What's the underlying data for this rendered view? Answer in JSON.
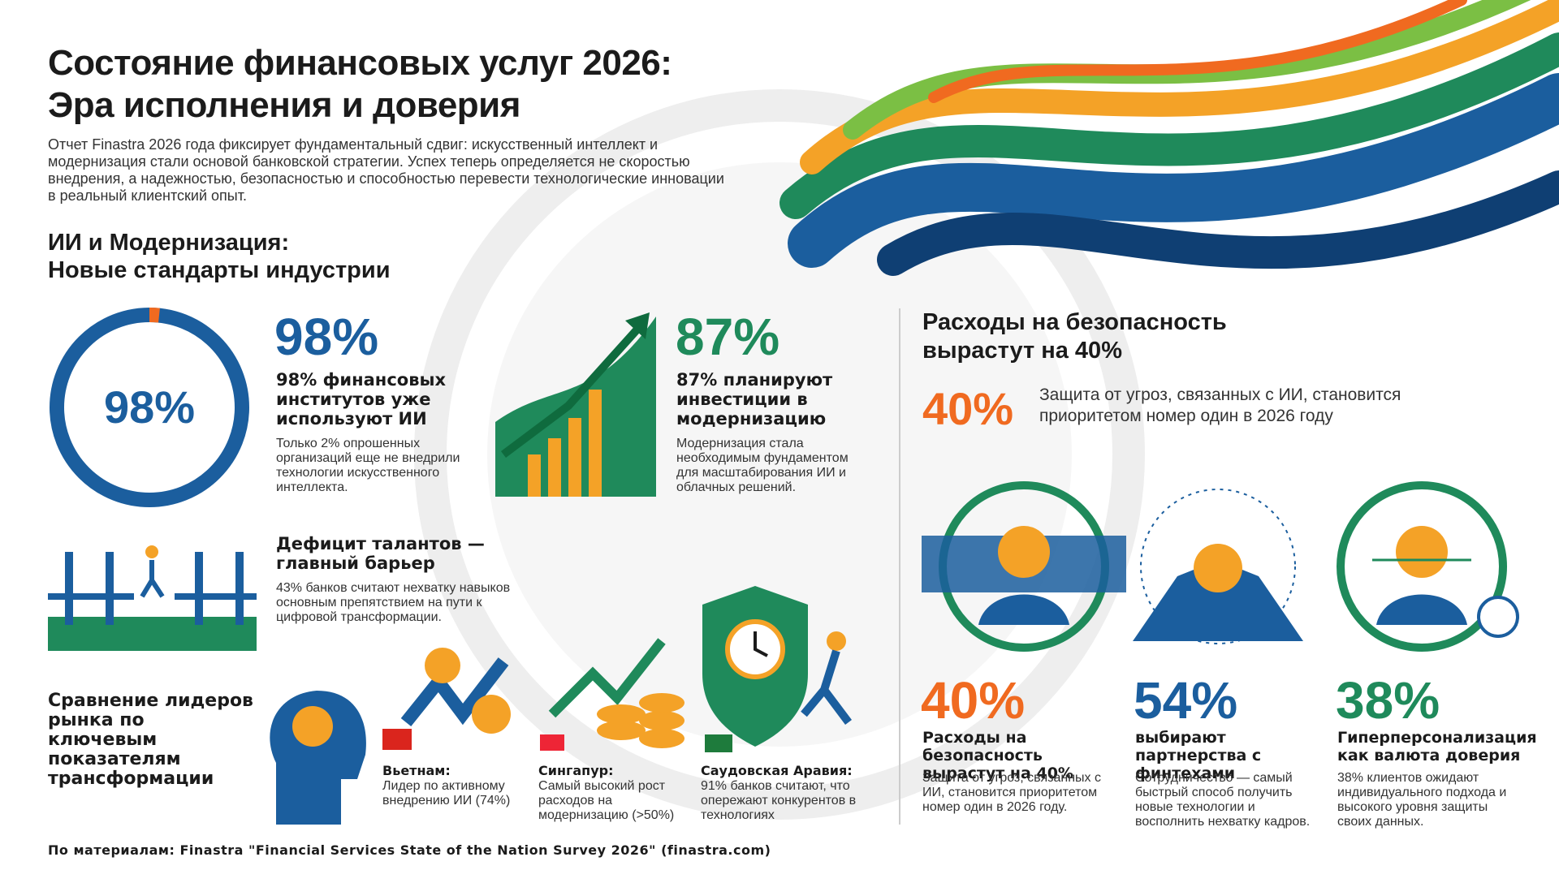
{
  "header": {
    "title_line1": "Состояние финансовых услуг 2026:",
    "title_line2": "Эра исполнения и доверия",
    "intro": "Отчет Finastra 2026 года фиксирует фундаментальный сдвиг: искусственный интеллект и модернизация стали основой банковской стратегии. Успех теперь определяется не скоростью внедрения, а надежностью, безопасностью и способностью перевести технологические инновации в реальный клиентский опыт."
  },
  "ai_section": {
    "heading_line1": "ИИ и Модернизация:",
    "heading_line2": "Новые стандарты индустрии",
    "ring_label": "98%",
    "stats": [
      {
        "value": "98%",
        "title": "98% финансовых институтов уже используют ИИ",
        "text": "Только 2% опрошенных организаций еще не внедрили технологии искусственного интеллекта."
      },
      {
        "value": "87%",
        "title": "87% планируют инвестиции в модернизацию",
        "text": "Модернизация стала необходимым фундаментом для масштабирования ИИ и облачных решений."
      }
    ],
    "talent": {
      "title": "Дефицит талантов — главный барьер",
      "text": "43% банков считают нехватку навыков основным препятствием на пути к цифровой трансформации."
    }
  },
  "comparison": {
    "heading": "Сравнение лидеров рынка по ключевым показателям трансформации",
    "countries": [
      {
        "name": "Вьетнам:",
        "text": "Лидер по активному внедрению ИИ (74%)"
      },
      {
        "name": "Сингапур:",
        "text": "Самый высокий рост расходов на модернизацию (>50%)"
      },
      {
        "name": "Саудовская Аравия:",
        "text": "91% банков считают, что опережают конкурентов в технологиях"
      }
    ]
  },
  "security_section": {
    "heading": "Расходы на безопасность вырастут на 40%",
    "highlight_value": "40%",
    "highlight_text": "Защита от угроз, связанных с ИИ, становится приоритетом номер один в 2026 году",
    "cards": [
      {
        "value": "40%",
        "title": "Расходы на безопасность вырастут на 40%",
        "text": "Защита от угроз, связанных с ИИ, становится приоритетом номер один в 2026 году."
      },
      {
        "value": "54%",
        "title": "выбирают партнерства с финтехами",
        "text": "Сотрудничество — самый быстрый способ получить новые технологии и восполнить нехватку кадров."
      },
      {
        "value": "38%",
        "title": "Гиперперсонализация как валюта доверия",
        "text": "38% клиентов ожидают индивидуального подхода и высокого уровня защиты своих данных."
      }
    ]
  },
  "footer": {
    "source": "По материалам: Finastra \"Financial Services State of the Nation Survey 2026\" (finastra.com)"
  }
}
